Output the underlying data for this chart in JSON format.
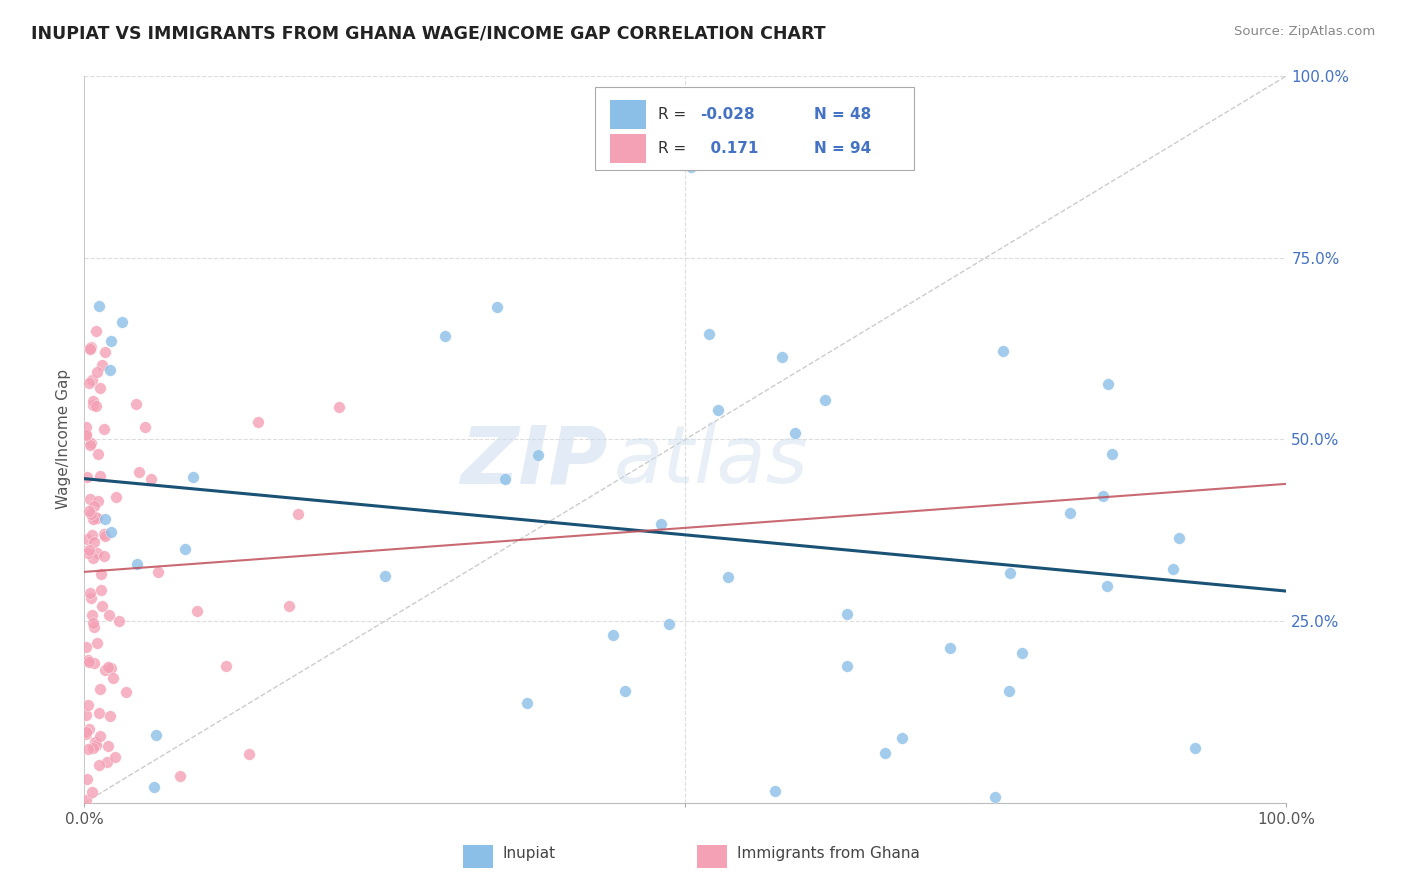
{
  "title": "INUPIAT VS IMMIGRANTS FROM GHANA WAGE/INCOME GAP CORRELATION CHART",
  "source": "Source: ZipAtlas.com",
  "ylabel": "Wage/Income Gap",
  "color_blue": "#8bbfe8",
  "color_pink": "#f4a0b5",
  "trend_blue": "#1a5276",
  "trend_pink": "#c0505a",
  "watermark_zip": "ZIP",
  "watermark_atlas": "atlas",
  "r1": "-0.028",
  "n1": "48",
  "r2": "0.171",
  "n2": "94",
  "label1": "Inupiat",
  "label2": "Immigrants from Ghana"
}
